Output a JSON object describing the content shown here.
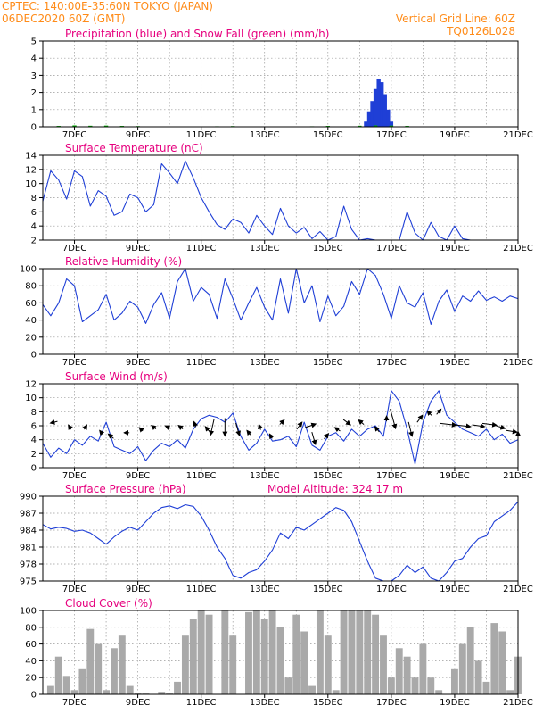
{
  "header": {
    "left_line1": "CPTEC:   140:00E-35:60N   TOKYO (JAPAN)",
    "left_line2": "06DEC2020 60Z (GMT)",
    "right_line1": "Vertical Grid Line: 60Z",
    "right_line2": "TQ0126L028"
  },
  "colors": {
    "header_text": "#ff8c1a",
    "panel_title": "#e6007e",
    "line": "#1f3fd6",
    "snow": "#00b000",
    "cloud_fill": "#a9a9a9",
    "grid": "#9a9a9a",
    "arrows": "#000000"
  },
  "chart_data": [
    {
      "type": "bar",
      "title": "Precipitation (blue) and Snow Fall (green) (mm/h)",
      "ylim": [
        0,
        5
      ],
      "yticks": [
        "0",
        "1",
        "2",
        "3",
        "4",
        "5"
      ],
      "xticks": [
        "7DEC",
        "9DEC",
        "11DEC",
        "13DEC",
        "15DEC",
        "17DEC",
        "19DEC",
        "21DEC"
      ],
      "grid": true,
      "series": [
        {
          "name": "Precipitation",
          "color": "#1f3fd6",
          "x": [
            16.2,
            16.3,
            16.4,
            16.5,
            16.6,
            16.7,
            16.8,
            16.9,
            17.0
          ],
          "values": [
            0.3,
            0.9,
            1.5,
            2.2,
            2.8,
            2.6,
            1.9,
            1.0,
            0.3
          ]
        },
        {
          "name": "Snow Fall",
          "color": "#00b000",
          "x": [
            6.5,
            7.0,
            7.5,
            8.0,
            8.5,
            9.0,
            11.5,
            12.0,
            14.5,
            15.0,
            16.0,
            16.5,
            17.0,
            17.5
          ],
          "values": [
            0.05,
            0.08,
            0.06,
            0.07,
            0.05,
            0.04,
            0.03,
            0.04,
            0.03,
            0.05,
            0.06,
            0.08,
            0.07,
            0.05
          ]
        }
      ]
    },
    {
      "type": "line",
      "title": "Surface Temperature (nC)",
      "ylim": [
        2,
        14
      ],
      "yticks": [
        "2",
        "4",
        "6",
        "8",
        "10",
        "12",
        "14"
      ],
      "xticks": [
        "7DEC",
        "9DEC",
        "11DEC",
        "13DEC",
        "15DEC",
        "17DEC",
        "19DEC",
        "21DEC"
      ],
      "grid": true,
      "x": [
        6.0,
        6.25,
        6.5,
        6.75,
        7.0,
        7.25,
        7.5,
        7.75,
        8.0,
        8.25,
        8.5,
        8.75,
        9.0,
        9.25,
        9.5,
        9.75,
        10.0,
        10.25,
        10.5,
        10.75,
        11.0,
        11.25,
        11.5,
        11.75,
        12.0,
        12.25,
        12.5,
        12.75,
        13.0,
        13.25,
        13.5,
        13.75,
        14.0,
        14.25,
        14.5,
        14.75,
        15.0,
        15.25,
        15.5,
        15.75,
        16.0,
        16.25,
        16.5,
        16.75,
        17.0,
        17.25,
        17.5,
        17.75,
        18.0,
        18.25,
        18.5,
        18.75,
        19.0,
        19.25,
        19.5,
        19.75,
        20.0,
        20.25,
        20.5,
        20.75,
        21.0
      ],
      "values": [
        7.5,
        11.8,
        10.5,
        7.8,
        11.8,
        11.0,
        6.8,
        9.0,
        8.2,
        5.5,
        6.0,
        8.5,
        8.0,
        6.0,
        7.0,
        12.8,
        11.5,
        10.0,
        13.2,
        10.8,
        8.0,
        6.0,
        4.2,
        3.5,
        5.0,
        4.5,
        3.0,
        5.5,
        4.0,
        2.8,
        6.5,
        4.0,
        3.0,
        3.8,
        2.2,
        3.2,
        2.0,
        2.5,
        6.8,
        3.5,
        2.0,
        2.2,
        2.0,
        1.8,
        2.0,
        2.0,
        6.0,
        3.0,
        2.0,
        4.5,
        2.5,
        2.0,
        4.0,
        2.2,
        2.0,
        2.0,
        2.0,
        2.0,
        2.0,
        2.0,
        2.0
      ]
    },
    {
      "type": "line",
      "title": "Relative Humidity (%)",
      "ylim": [
        0,
        100
      ],
      "yticks": [
        "0",
        "20",
        "40",
        "60",
        "80",
        "100"
      ],
      "xticks": [
        "7DEC",
        "9DEC",
        "11DEC",
        "13DEC",
        "15DEC",
        "17DEC",
        "19DEC",
        "21DEC"
      ],
      "grid": true,
      "x": [
        6.0,
        6.25,
        6.5,
        6.75,
        7.0,
        7.25,
        7.5,
        7.75,
        8.0,
        8.25,
        8.5,
        8.75,
        9.0,
        9.25,
        9.5,
        9.75,
        10.0,
        10.25,
        10.5,
        10.75,
        11.0,
        11.25,
        11.5,
        11.75,
        12.0,
        12.25,
        12.5,
        12.75,
        13.0,
        13.25,
        13.5,
        13.75,
        14.0,
        14.25,
        14.5,
        14.75,
        15.0,
        15.25,
        15.5,
        15.75,
        16.0,
        16.25,
        16.5,
        16.75,
        17.0,
        17.25,
        17.5,
        17.75,
        18.0,
        18.25,
        18.5,
        18.75,
        19.0,
        19.25,
        19.5,
        19.75,
        20.0,
        20.25,
        20.5,
        20.75,
        21.0
      ],
      "values": [
        58,
        45,
        60,
        88,
        80,
        38,
        45,
        52,
        70,
        40,
        48,
        62,
        55,
        36,
        58,
        72,
        42,
        85,
        100,
        62,
        78,
        70,
        42,
        88,
        65,
        40,
        60,
        78,
        55,
        40,
        88,
        48,
        100,
        60,
        80,
        38,
        68,
        45,
        56,
        85,
        70,
        100,
        92,
        70,
        42,
        80,
        60,
        55,
        72,
        35,
        62,
        75,
        50,
        68,
        62,
        74,
        63,
        67,
        62,
        68,
        65
      ]
    },
    {
      "type": "line",
      "title": "Surface Wind (m/s)",
      "ylim": [
        0,
        12
      ],
      "yticks": [
        "0",
        "2",
        "4",
        "6",
        "8",
        "10",
        "12"
      ],
      "xticks": [
        "7DEC",
        "9DEC",
        "11DEC",
        "13DEC",
        "15DEC",
        "17DEC",
        "19DEC",
        "21DEC"
      ],
      "grid": true,
      "x": [
        6.0,
        6.25,
        6.5,
        6.75,
        7.0,
        7.25,
        7.5,
        7.75,
        8.0,
        8.25,
        8.5,
        8.75,
        9.0,
        9.25,
        9.5,
        9.75,
        10.0,
        10.25,
        10.5,
        10.75,
        11.0,
        11.25,
        11.5,
        11.75,
        12.0,
        12.25,
        12.5,
        12.75,
        13.0,
        13.25,
        13.5,
        13.75,
        14.0,
        14.25,
        14.5,
        14.75,
        15.0,
        15.25,
        15.5,
        15.75,
        16.0,
        16.25,
        16.5,
        16.75,
        17.0,
        17.25,
        17.5,
        17.75,
        18.0,
        18.25,
        18.5,
        18.75,
        19.0,
        19.25,
        19.5,
        19.75,
        20.0,
        20.25,
        20.5,
        20.75,
        21.0
      ],
      "values": [
        3.5,
        1.5,
        2.8,
        2.0,
        4.0,
        3.2,
        4.5,
        3.8,
        6.5,
        3.0,
        2.5,
        2.0,
        3.0,
        1.0,
        2.5,
        3.5,
        3.0,
        4.0,
        2.8,
        5.5,
        7.0,
        7.5,
        7.2,
        6.5,
        7.8,
        4.5,
        2.5,
        3.5,
        5.5,
        3.8,
        4.0,
        4.5,
        3.0,
        6.5,
        3.2,
        2.5,
        4.5,
        5.0,
        3.8,
        5.5,
        4.5,
        5.5,
        6.0,
        4.5,
        11.0,
        9.5,
        5.5,
        0.5,
        6.5,
        9.5,
        11.0,
        7.5,
        6.5,
        5.5,
        5.0,
        4.5,
        5.5,
        4.0,
        4.8,
        3.5,
        4.0
      ]
    },
    {
      "type": "line",
      "title": "Surface Pressure (hPa)",
      "annotation": "Model Altitude: 324.17 m",
      "ylim": [
        975,
        990
      ],
      "yticks": [
        "975",
        "978",
        "981",
        "984",
        "987",
        "990"
      ],
      "xticks": [
        "7DEC",
        "9DEC",
        "11DEC",
        "13DEC",
        "15DEC",
        "17DEC",
        "19DEC",
        "21DEC"
      ],
      "grid": true,
      "x": [
        6.0,
        6.25,
        6.5,
        6.75,
        7.0,
        7.25,
        7.5,
        7.75,
        8.0,
        8.25,
        8.5,
        8.75,
        9.0,
        9.25,
        9.5,
        9.75,
        10.0,
        10.25,
        10.5,
        10.75,
        11.0,
        11.25,
        11.5,
        11.75,
        12.0,
        12.25,
        12.5,
        12.75,
        13.0,
        13.25,
        13.5,
        13.75,
        14.0,
        14.25,
        14.5,
        14.75,
        15.0,
        15.25,
        15.5,
        15.75,
        16.0,
        16.25,
        16.5,
        16.75,
        17.0,
        17.25,
        17.5,
        17.75,
        18.0,
        18.25,
        18.5,
        18.75,
        19.0,
        19.25,
        19.5,
        19.75,
        20.0,
        20.25,
        20.5,
        20.75,
        21.0
      ],
      "values": [
        985.0,
        984.2,
        984.5,
        984.3,
        983.8,
        984.0,
        983.5,
        982.5,
        981.5,
        982.8,
        983.8,
        984.5,
        984.0,
        985.5,
        987.0,
        988.0,
        988.3,
        987.8,
        988.5,
        988.2,
        986.5,
        984.0,
        981.0,
        979.0,
        976.0,
        975.5,
        976.5,
        977.0,
        978.5,
        980.5,
        983.5,
        982.5,
        984.5,
        984.0,
        985.0,
        986.0,
        987.0,
        988.0,
        987.5,
        985.5,
        982.0,
        978.5,
        975.5,
        974.5,
        974.5,
        976.0,
        977.8,
        976.5,
        977.5,
        975.5,
        975.0,
        976.5,
        978.5,
        979.0,
        981.0,
        982.5,
        983.0,
        985.5,
        986.5,
        987.5,
        989.0
      ]
    },
    {
      "type": "area",
      "title": "Cloud Cover (%)",
      "ylim": [
        0,
        100
      ],
      "yticks": [
        "0",
        "20",
        "40",
        "60",
        "80",
        "100"
      ],
      "xticks": [
        "7DEC",
        "9DEC",
        "11DEC",
        "13DEC",
        "15DEC",
        "17DEC",
        "19DEC",
        "21DEC"
      ],
      "grid": true,
      "x": [
        6.0,
        6.25,
        6.5,
        6.75,
        7.0,
        7.25,
        7.5,
        7.75,
        8.0,
        8.25,
        8.5,
        8.75,
        9.0,
        9.25,
        9.5,
        9.75,
        10.0,
        10.25,
        10.5,
        10.75,
        11.0,
        11.25,
        11.5,
        11.75,
        12.0,
        12.25,
        12.5,
        12.75,
        13.0,
        13.25,
        13.5,
        13.75,
        14.0,
        14.25,
        14.5,
        14.75,
        15.0,
        15.25,
        15.5,
        15.75,
        16.0,
        16.25,
        16.5,
        16.75,
        17.0,
        17.25,
        17.5,
        17.75,
        18.0,
        18.25,
        18.5,
        18.75,
        19.0,
        19.25,
        19.5,
        19.75,
        20.0,
        20.25,
        20.5,
        20.75,
        21.0
      ],
      "values": [
        0,
        10,
        45,
        22,
        5,
        30,
        78,
        60,
        5,
        55,
        70,
        10,
        2,
        1,
        0,
        3,
        1,
        15,
        70,
        90,
        100,
        95,
        0,
        100,
        70,
        0,
        98,
        100,
        90,
        100,
        80,
        20,
        95,
        75,
        10,
        100,
        70,
        5,
        100,
        100,
        100,
        100,
        95,
        70,
        20,
        55,
        45,
        20,
        60,
        20,
        5,
        0,
        30,
        60,
        80,
        40,
        15,
        85,
        75,
        5,
        45
      ]
    }
  ]
}
